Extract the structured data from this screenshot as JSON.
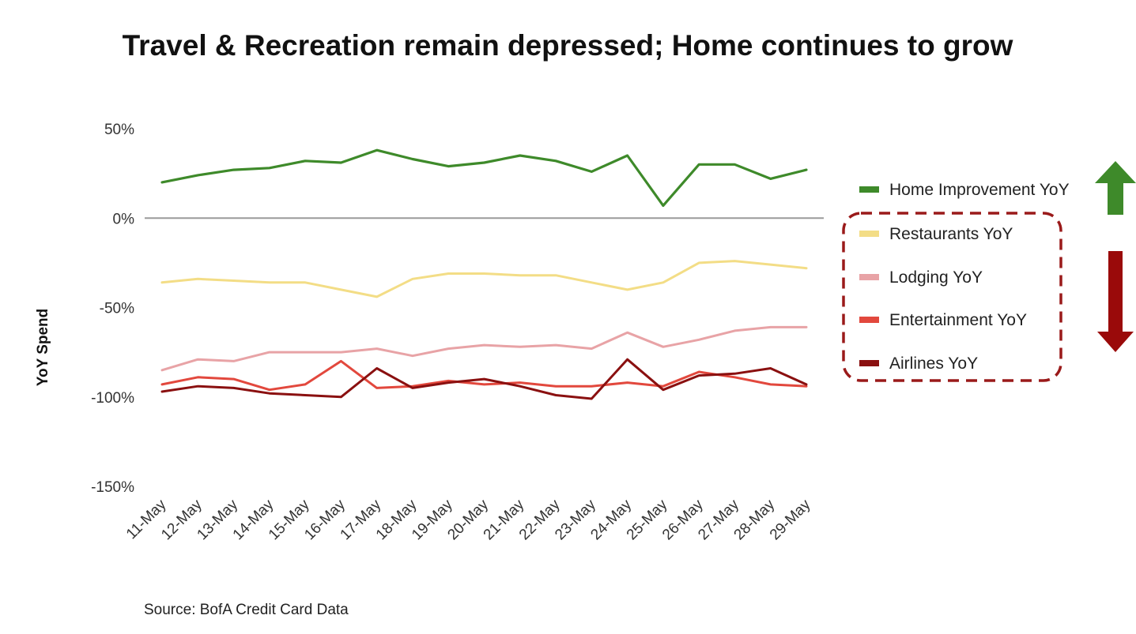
{
  "chart_data": {
    "type": "line",
    "title": "Travel & Recreation remain depressed; Home continues to grow",
    "xlabel": "",
    "ylabel": "YoY Spend",
    "source": "Source: BofA Credit Card Data",
    "ylim": [
      -150,
      50
    ],
    "yticks": [
      {
        "value": 50,
        "label": "50%"
      },
      {
        "value": 0,
        "label": "0%"
      },
      {
        "value": -50,
        "label": "-50%"
      },
      {
        "value": -100,
        "label": "-100%"
      },
      {
        "value": -150,
        "label": "-150%"
      }
    ],
    "grid": false,
    "zero_line": true,
    "legend_position": "right",
    "categories": [
      "11-May",
      "12-May",
      "13-May",
      "14-May",
      "15-May",
      "16-May",
      "17-May",
      "18-May",
      "19-May",
      "20-May",
      "21-May",
      "22-May",
      "23-May",
      "24-May",
      "25-May",
      "26-May",
      "27-May",
      "28-May",
      "29-May"
    ],
    "series": [
      {
        "name": "Home Improvement YoY",
        "color": "#3e8a2a",
        "values": [
          20,
          24,
          27,
          28,
          32,
          31,
          38,
          33,
          29,
          31,
          35,
          32,
          26,
          35,
          7,
          30,
          30,
          22,
          27
        ]
      },
      {
        "name": "Restaurants YoY",
        "color": "#f3dd86",
        "values": [
          -36,
          -34,
          -35,
          -36,
          -36,
          -40,
          -44,
          -34,
          -31,
          -31,
          -32,
          -32,
          -36,
          -40,
          -36,
          -25,
          -24,
          -26,
          -28
        ]
      },
      {
        "name": "Lodging YoY",
        "color": "#e8a3a6",
        "values": [
          -85,
          -79,
          -80,
          -75,
          -75,
          -75,
          -73,
          -77,
          -73,
          -71,
          -72,
          -71,
          -73,
          -64,
          -72,
          -68,
          -63,
          -61,
          -61
        ]
      },
      {
        "name": "Entertainment YoY",
        "color": "#e2483d",
        "values": [
          -93,
          -89,
          -90,
          -96,
          -93,
          -80,
          -95,
          -94,
          -91,
          -93,
          -92,
          -94,
          -94,
          -92,
          -94,
          -86,
          -89,
          -93,
          -94
        ]
      },
      {
        "name": "Airlines YoY",
        "color": "#8a1010",
        "values": [
          -97,
          -94,
          -95,
          -98,
          -99,
          -100,
          -84,
          -95,
          -92,
          -90,
          -94,
          -99,
          -101,
          -79,
          -96,
          -88,
          -87,
          -84,
          -93
        ]
      }
    ],
    "annotations": [
      {
        "type": "arrow-up",
        "color": "#3e8a2a",
        "target": "Home Improvement YoY"
      },
      {
        "type": "arrow-down",
        "color": "#9a0a0a",
        "target": "Restaurants, Lodging, Entertainment, Airlines"
      },
      {
        "type": "dashed-box",
        "color": "#9a1a1a",
        "target": "Restaurants, Lodging, Entertainment, Airlines"
      }
    ]
  }
}
